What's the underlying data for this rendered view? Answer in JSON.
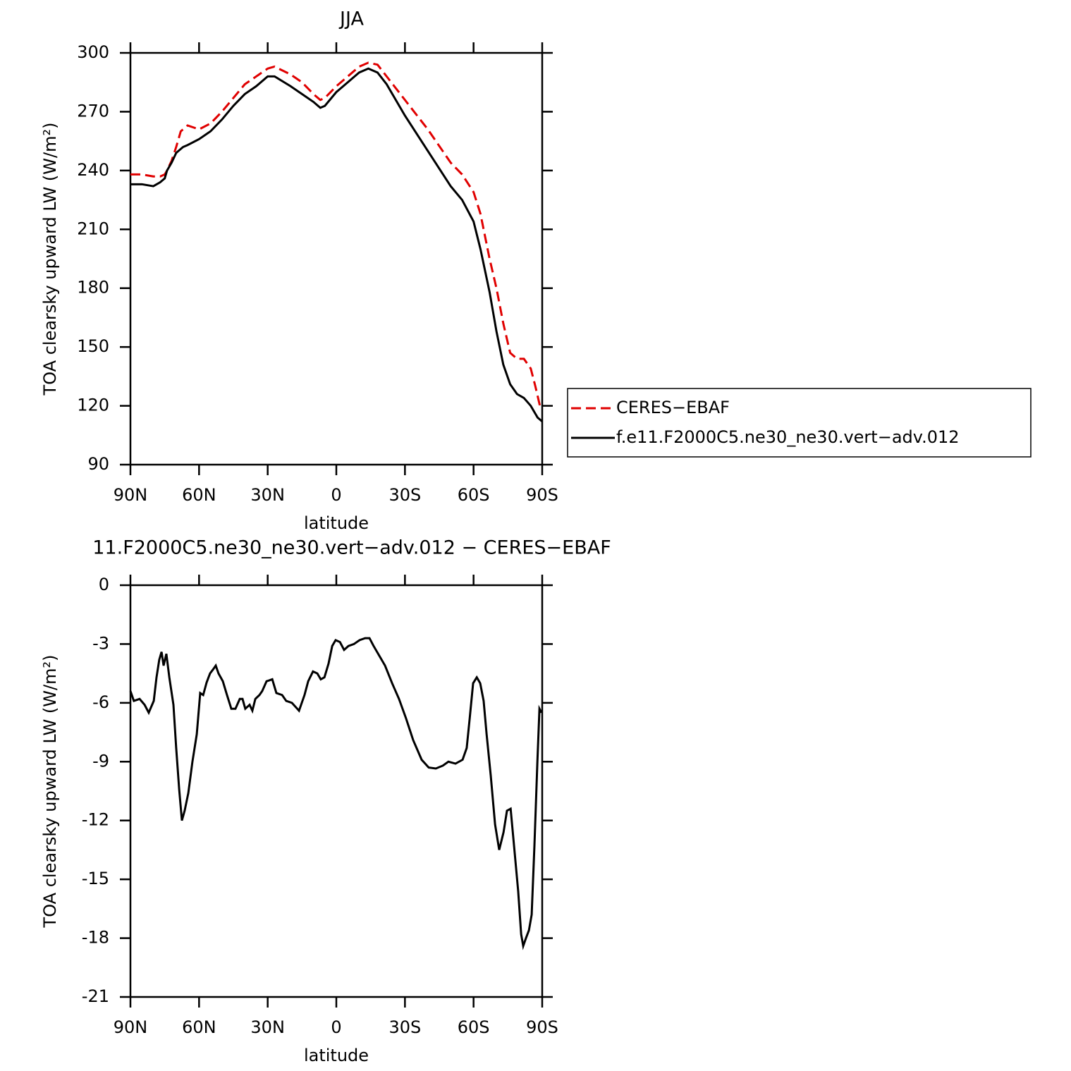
{
  "chart_data": [
    {
      "type": "line",
      "title": "JJA",
      "xlabel": "latitude",
      "ylabel": "TOA clearsky upward LW (W/m²)",
      "x": [
        90,
        85,
        80,
        77,
        75,
        74,
        72,
        70,
        68,
        67,
        65,
        60,
        55,
        50,
        45,
        40,
        35,
        30,
        27,
        20,
        15,
        10,
        7,
        5,
        0,
        -5,
        -10,
        -14,
        -18,
        -22,
        -30,
        -40,
        -50,
        -55,
        -60,
        -63,
        -67,
        -70,
        -73,
        -76,
        -79,
        -82,
        -85,
        -87,
        -88,
        -89,
        -90
      ],
      "series": [
        {
          "name": "CERES−EBAF",
          "color": "#e00000",
          "linestyle": "dashed",
          "values": [
            238,
            238,
            237,
            237,
            238,
            240,
            245,
            252,
            260,
            261,
            263,
            261,
            264,
            270,
            277,
            284,
            288,
            292,
            293,
            289,
            285,
            279,
            276,
            277,
            283,
            288,
            293,
            295,
            294,
            288,
            276,
            261,
            244,
            238,
            229,
            218,
            195,
            180,
            162,
            147,
            144,
            144,
            139,
            130,
            125,
            120,
            119
          ]
        },
        {
          "name": "f.e11.F2000C5.ne30_ne30.vert−adv.012",
          "color": "#000000",
          "linestyle": "solid",
          "values": [
            233,
            233,
            232,
            234,
            236,
            240,
            244,
            249,
            251,
            252,
            253,
            256,
            260,
            266,
            273,
            279,
            283,
            288,
            288,
            283,
            279,
            275,
            272,
            273,
            280,
            285,
            290,
            292,
            290,
            284,
            268,
            250,
            232,
            225,
            214,
            200,
            178,
            158,
            141,
            131,
            126,
            124,
            120,
            116,
            114,
            113,
            112
          ]
        }
      ],
      "xlim": [
        90,
        -90
      ],
      "xticks": [
        {
          "value": 90,
          "label": "90N"
        },
        {
          "value": 60,
          "label": "60N"
        },
        {
          "value": 30,
          "label": "30N"
        },
        0,
        {
          "value": -30,
          "label": "30S"
        },
        {
          "value": -60,
          "label": "60S"
        },
        {
          "value": -90,
          "label": "90S"
        }
      ],
      "ylim": [
        90,
        300
      ],
      "yticks": [
        90,
        120,
        150,
        180,
        210,
        240,
        270,
        300
      ],
      "legend": "outside-right"
    },
    {
      "type": "line",
      "title": "11.F2000C5.ne30_ne30.vert−adv.012 − CERES−EBAF",
      "xlabel": "latitude",
      "ylabel": "TOA clearsky upward LW (W/m²)",
      "x": [
        90,
        88.5,
        86,
        83.8,
        82,
        79.8,
        78.6,
        77.4,
        76.4,
        75.5,
        74.3,
        73,
        71.2,
        70,
        68.7,
        67.5,
        66.3,
        64.7,
        62.9,
        61,
        59.5,
        58.2,
        56.7,
        55.2,
        53.9,
        52.7,
        51.5,
        49.6,
        47.8,
        45.9,
        44.1,
        42.2,
        41,
        39.8,
        37.9,
        36.7,
        35.4,
        33.6,
        32.4,
        30.5,
        28,
        26.2,
        23.7,
        21.9,
        19.4,
        16.3,
        13.9,
        12.3,
        10.2,
        8.3,
        6.8,
        5.2,
        3.4,
        1.8,
        0.3,
        -1.6,
        -3.4,
        -5.3,
        -7.7,
        -10.2,
        -12.6,
        -14.5,
        -16.3,
        -18.8,
        -21.3,
        -24.4,
        -27.4,
        -30.5,
        -33.6,
        -37.3,
        -40.4,
        -43.5,
        -46.6,
        -49,
        -52.1,
        -55.2,
        -57,
        -58.3,
        -59.8,
        -61.4,
        -62.9,
        -64.4,
        -65.7,
        -67.5,
        -69.4,
        -71.2,
        -73.1,
        -74.6,
        -76.2,
        -77.7,
        -79.5,
        -80.8,
        -81.7,
        -82.9,
        -84.2,
        -85.4,
        -86.6,
        -87.9,
        -88.8,
        -89.7
      ],
      "series": [
        {
          "color": "#000000",
          "linestyle": "solid",
          "values": [
            -5.4,
            -5.9,
            -5.8,
            -6.1,
            -6.5,
            -5.9,
            -4.7,
            -3.8,
            -3.4,
            -4.1,
            -3.5,
            -4.7,
            -6.1,
            -8.3,
            -10.4,
            -12.0,
            -11.5,
            -10.6,
            -9.0,
            -7.6,
            -5.5,
            -5.6,
            -4.96,
            -4.5,
            -4.3,
            -4.1,
            -4.5,
            -4.9,
            -5.6,
            -6.3,
            -6.3,
            -5.8,
            -5.8,
            -6.3,
            -6.1,
            -6.4,
            -5.8,
            -5.6,
            -5.4,
            -4.9,
            -4.8,
            -5.5,
            -5.6,
            -5.9,
            -6.0,
            -6.4,
            -5.6,
            -4.9,
            -4.4,
            -4.5,
            -4.8,
            -4.7,
            -4.0,
            -3.1,
            -2.8,
            -2.9,
            -3.3,
            -3.1,
            -3.0,
            -2.8,
            -2.7,
            -2.7,
            -3.1,
            -3.6,
            -4.1,
            -5.0,
            -5.8,
            -6.8,
            -7.9,
            -8.9,
            -9.3,
            -9.35,
            -9.2,
            -9.0,
            -9.1,
            -8.9,
            -8.3,
            -6.8,
            -5.0,
            -4.7,
            -5.0,
            -5.9,
            -7.6,
            -9.7,
            -12.2,
            -13.5,
            -12.6,
            -11.5,
            -11.4,
            -13.3,
            -15.6,
            -17.8,
            -18.4,
            -18.0,
            -17.6,
            -16.8,
            -13.3,
            -9.0,
            -6.3,
            -6.5
          ]
        }
      ],
      "xlim": [
        90,
        -90
      ],
      "xticks": [
        {
          "value": 90,
          "label": "90N"
        },
        {
          "value": 60,
          "label": "60N"
        },
        {
          "value": 30,
          "label": "30N"
        },
        0,
        {
          "value": -30,
          "label": "30S"
        },
        {
          "value": -60,
          "label": "60S"
        },
        {
          "value": -90,
          "label": "90S"
        }
      ],
      "ylim": [
        -21,
        0
      ],
      "yticks": [
        -21,
        -18,
        -15,
        -12,
        -9,
        -6,
        -3,
        0
      ]
    }
  ]
}
